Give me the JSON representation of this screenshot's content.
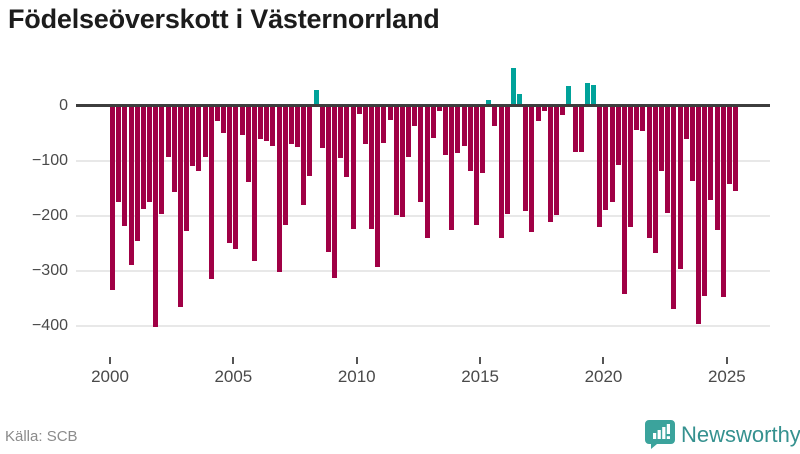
{
  "page": {
    "title": "Födelseöverskott i Västernorrland",
    "source": "Källa: SCB",
    "brand": "Newsworthy"
  },
  "colors": {
    "bar_negative": "#a00045",
    "bar_positive": "#00a29a",
    "zero_line": "#3d3d3d",
    "gridline": "#e8e8e8",
    "axis_text": "#4a4a4a",
    "title_text": "#1c1c1c",
    "source_text": "#8b8b8b",
    "brand_teal": "#35918f",
    "badge_teal": "#3ba39c",
    "background": "#ffffff"
  },
  "chart_data": {
    "type": "bar",
    "title": "Födelseöverskott i Västernorrland",
    "xlabel": "",
    "ylabel": "",
    "grid": "horizontal",
    "legend": "none",
    "yticks": [
      0,
      -100,
      -200,
      -300,
      -400
    ],
    "xticks": [
      "2000",
      "2005",
      "2010",
      "2015",
      "2020",
      "2025"
    ],
    "ylim": [
      -445,
      85
    ],
    "series_frequency": "quarterly",
    "points": [
      [
        "2000Q1",
        -332
      ],
      [
        "2000Q2",
        -172
      ],
      [
        "2000Q3",
        -216
      ],
      [
        "2000Q4",
        -288
      ],
      [
        "2001Q1",
        -244
      ],
      [
        "2001Q2",
        -186
      ],
      [
        "2001Q3",
        -172
      ],
      [
        "2001Q4",
        -400
      ],
      [
        "2002Q1",
        -194
      ],
      [
        "2002Q2",
        -90
      ],
      [
        "2002Q3",
        -154
      ],
      [
        "2002Q4",
        -364
      ],
      [
        "2003Q1",
        -226
      ],
      [
        "2003Q2",
        -108
      ],
      [
        "2003Q3",
        -116
      ],
      [
        "2003Q4",
        -91
      ],
      [
        "2004Q1",
        -312
      ],
      [
        "2004Q2",
        -26
      ],
      [
        "2004Q3",
        -47
      ],
      [
        "2004Q4",
        -248
      ],
      [
        "2005Q1",
        -259
      ],
      [
        "2005Q2",
        -50
      ],
      [
        "2005Q3",
        -137
      ],
      [
        "2005Q4",
        -280
      ],
      [
        "2006Q1",
        -59
      ],
      [
        "2006Q2",
        -62
      ],
      [
        "2006Q3",
        -70
      ],
      [
        "2006Q4",
        -300
      ],
      [
        "2007Q1",
        -215
      ],
      [
        "2007Q2",
        -68
      ],
      [
        "2007Q3",
        -73
      ],
      [
        "2007Q4",
        -178
      ],
      [
        "2008Q1",
        -126
      ],
      [
        "2008Q2",
        26
      ],
      [
        "2008Q3",
        -74
      ],
      [
        "2008Q4",
        -263
      ],
      [
        "2009Q1",
        -311
      ],
      [
        "2009Q2",
        -93
      ],
      [
        "2009Q3",
        -128
      ],
      [
        "2009Q4",
        -222
      ],
      [
        "2010Q1",
        -12
      ],
      [
        "2010Q2",
        -68
      ],
      [
        "2010Q3",
        -221
      ],
      [
        "2010Q4",
        -291
      ],
      [
        "2011Q1",
        -65
      ],
      [
        "2011Q2",
        -23
      ],
      [
        "2011Q3",
        -196
      ],
      [
        "2011Q4",
        -200
      ],
      [
        "2012Q1",
        -90
      ],
      [
        "2012Q2",
        -35
      ],
      [
        "2012Q3",
        -172
      ],
      [
        "2012Q4",
        -239
      ],
      [
        "2013Q1",
        -56
      ],
      [
        "2013Q2",
        -8
      ],
      [
        "2013Q3",
        -87
      ],
      [
        "2013Q4",
        -224
      ],
      [
        "2014Q1",
        -84
      ],
      [
        "2014Q2",
        -70
      ],
      [
        "2014Q3",
        -117
      ],
      [
        "2014Q4",
        -215
      ],
      [
        "2015Q1",
        -120
      ],
      [
        "2015Q2",
        7
      ],
      [
        "2015Q3",
        -35
      ],
      [
        "2015Q4",
        -239
      ],
      [
        "2016Q1",
        -195
      ],
      [
        "2016Q2",
        66
      ],
      [
        "2016Q3",
        18
      ],
      [
        "2016Q4",
        -189
      ],
      [
        "2017Q1",
        -228
      ],
      [
        "2017Q2",
        -26
      ],
      [
        "2017Q3",
        -8
      ],
      [
        "2017Q4",
        -209
      ],
      [
        "2018Q1",
        -196
      ],
      [
        "2018Q2",
        -15
      ],
      [
        "2018Q3",
        32
      ],
      [
        "2018Q4",
        -81
      ],
      [
        "2019Q1",
        -81
      ],
      [
        "2019Q2",
        39
      ],
      [
        "2019Q3",
        35
      ],
      [
        "2019Q4",
        -218
      ],
      [
        "2020Q1",
        -187
      ],
      [
        "2020Q2",
        -172
      ],
      [
        "2020Q3",
        -105
      ],
      [
        "2020Q4",
        -340
      ],
      [
        "2021Q1",
        -218
      ],
      [
        "2021Q2",
        -41
      ],
      [
        "2021Q3",
        -43
      ],
      [
        "2021Q4",
        -239
      ],
      [
        "2022Q1",
        -266
      ],
      [
        "2022Q2",
        -117
      ],
      [
        "2022Q3",
        -193
      ],
      [
        "2022Q4",
        -367
      ],
      [
        "2023Q1",
        -294
      ],
      [
        "2023Q2",
        -59
      ],
      [
        "2023Q3",
        -135
      ],
      [
        "2023Q4",
        -394
      ],
      [
        "2024Q1",
        -343
      ],
      [
        "2024Q2",
        -169
      ],
      [
        "2024Q3",
        -224
      ],
      [
        "2024Q4",
        -345
      ],
      [
        "2025Q1",
        -140
      ],
      [
        "2025Q2",
        -152
      ]
    ]
  }
}
